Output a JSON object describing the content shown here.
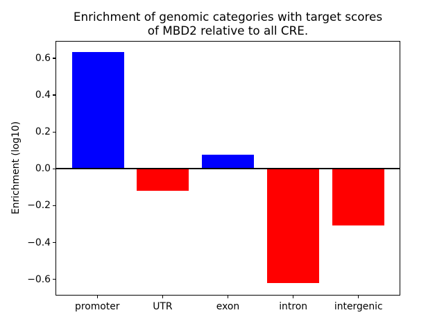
{
  "figure": {
    "title_line1": "Enrichment of genomic categories with target scores",
    "title_line2": "of MBD2 relative to all CRE.",
    "ylabel": "Enrichment (log10)"
  },
  "chart_data": {
    "type": "bar",
    "title": "Enrichment of genomic categories with target scores\nof MBD2 relative to all CRE.",
    "xlabel": "",
    "ylabel": "Enrichment (log10)",
    "categories": [
      "promoter",
      "UTR",
      "exon",
      "intron",
      "intergenic"
    ],
    "values": [
      0.638,
      -0.119,
      0.078,
      -0.625,
      -0.31
    ],
    "colors": [
      "#0000ff",
      "#ff0000",
      "#0000ff",
      "#ff0000",
      "#ff0000"
    ],
    "positive_color": "#0000ff",
    "negative_color": "#ff0000",
    "ylim": [
      -0.688,
      0.694
    ],
    "xlim": [
      -0.64,
      4.64
    ],
    "bar_width": 0.8,
    "yticks": [
      0.6,
      0.4,
      0.2,
      0.0,
      -0.2,
      -0.4,
      -0.6
    ],
    "ytick_labels": [
      "0.6",
      "0.4",
      "0.2",
      "0.0",
      "−0.2",
      "−0.4",
      "−0.6"
    ],
    "zero_line": true,
    "grid": false,
    "legend": false
  }
}
